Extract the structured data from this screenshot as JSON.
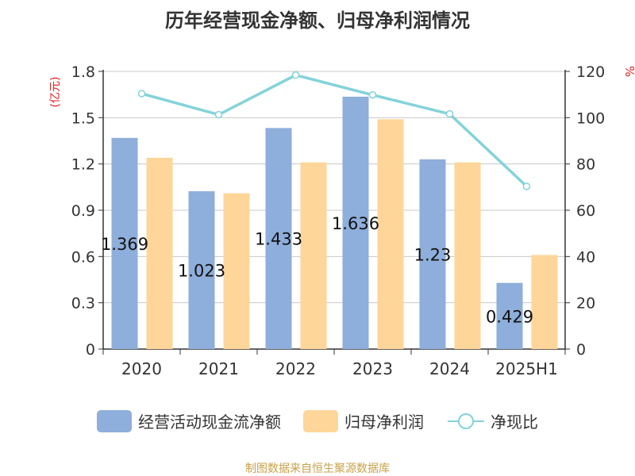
{
  "title": "历年经营现金净额、归母净利润情况",
  "source": "制图数据来自恒生聚源数据库",
  "chart_data": {
    "type": "bar",
    "categories": [
      "2020",
      "2021",
      "2022",
      "2023",
      "2024",
      "2025H1"
    ],
    "left_axis_unit": "(亿元)",
    "right_axis_unit": "%",
    "left_ylim": [
      0,
      1.8
    ],
    "left_ticks": [
      "0",
      "0.3",
      "0.6",
      "0.9",
      "1.2",
      "1.5",
      "1.8"
    ],
    "right_ylim": [
      0,
      120
    ],
    "right_ticks": [
      "0",
      "20",
      "40",
      "60",
      "80",
      "100",
      "120"
    ],
    "grid": true,
    "legend_position": "bottom",
    "series": [
      {
        "name": "经营活动现金流净额",
        "type": "bar",
        "axis": "left",
        "color": "#8eaedb",
        "values": [
          1.369,
          1.023,
          1.433,
          1.636,
          1.23,
          0.429
        ],
        "labels": [
          "1.369",
          "1.023",
          "1.433",
          "1.636",
          "1.23",
          "0.429"
        ]
      },
      {
        "name": "归母净利润",
        "type": "bar",
        "axis": "left",
        "color": "#fed699",
        "values": [
          1.24,
          1.01,
          1.21,
          1.49,
          1.21,
          0.61
        ]
      },
      {
        "name": "净现比",
        "type": "line",
        "axis": "right",
        "color": "#84d3d9",
        "values": [
          110.4,
          101.3,
          118.4,
          109.8,
          101.6,
          70.3
        ]
      }
    ]
  }
}
